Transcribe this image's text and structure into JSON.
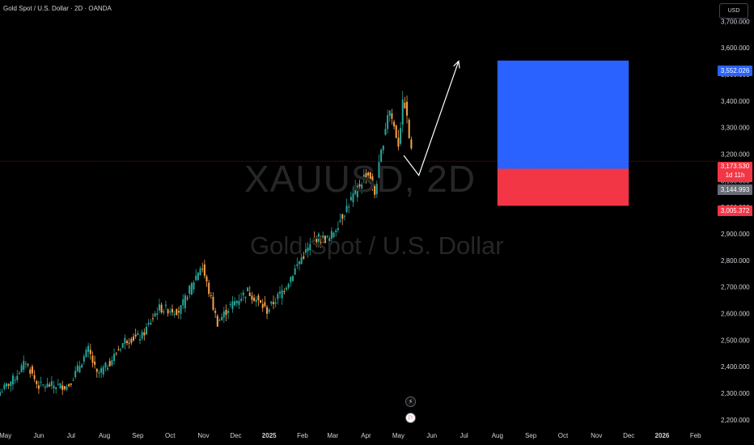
{
  "header": {
    "title": "Gold Spot / U.S. Dollar · 2D · OANDA",
    "currency": "USD"
  },
  "watermark": {
    "symbol": "XAUUSD, 2D",
    "name": "Gold Spot / U.S. Dollar"
  },
  "colors": {
    "up": "#26a69a",
    "down": "#f7a14a",
    "target_zone": "#2962ff",
    "stop_zone": "#f23645",
    "price_line": "#f23645"
  },
  "chart_data": {
    "type": "candlestick",
    "ylim": [
      2175,
      3780
    ],
    "y_ticks": [
      2200,
      2300,
      2400,
      2500,
      2600,
      2700,
      2800,
      2900,
      3000,
      3100,
      3200,
      3300,
      3400,
      3500,
      3600,
      3700
    ],
    "y_tick_labels": [
      "2,200.000",
      "2,300.000",
      "2,400.000",
      "2,500.000",
      "2,600.000",
      "2,700.000",
      "2,800.000",
      "2,900.000",
      "3,000.000",
      "3,100.000",
      "3,200.000",
      "3,300.000",
      "3,400.000",
      "3,500.000",
      "3,600.000",
      "3,700.000"
    ],
    "x_range": [
      "2024-04-26",
      "2026-02-20"
    ],
    "x_labels": [
      {
        "date": "2024-05-01",
        "label": "May"
      },
      {
        "date": "2024-06-01",
        "label": "Jun"
      },
      {
        "date": "2024-07-01",
        "label": "Jul"
      },
      {
        "date": "2024-08-01",
        "label": "Aug"
      },
      {
        "date": "2024-09-01",
        "label": "Sep"
      },
      {
        "date": "2024-10-01",
        "label": "Oct"
      },
      {
        "date": "2024-11-01",
        "label": "Nov"
      },
      {
        "date": "2024-12-01",
        "label": "Dec"
      },
      {
        "date": "2025-01-01",
        "label": "2025",
        "bold": true
      },
      {
        "date": "2025-02-01",
        "label": "Feb"
      },
      {
        "date": "2025-03-01",
        "label": "Mar"
      },
      {
        "date": "2025-04-01",
        "label": "Apr"
      },
      {
        "date": "2025-05-01",
        "label": "May"
      },
      {
        "date": "2025-06-01",
        "label": "Jun"
      },
      {
        "date": "2025-07-01",
        "label": "Jul"
      },
      {
        "date": "2025-08-01",
        "label": "Aug"
      },
      {
        "date": "2025-09-01",
        "label": "Sep"
      },
      {
        "date": "2025-10-01",
        "label": "Oct"
      },
      {
        "date": "2025-11-01",
        "label": "Nov"
      },
      {
        "date": "2025-12-01",
        "label": "Dec"
      },
      {
        "date": "2026-01-01",
        "label": "2026",
        "bold": true
      },
      {
        "date": "2026-02-01",
        "label": "Feb"
      }
    ],
    "series_close": [
      {
        "date": "2024-04-26",
        "value": 2305
      },
      {
        "date": "2024-05-10",
        "value": 2360
      },
      {
        "date": "2024-05-20",
        "value": 2420
      },
      {
        "date": "2024-05-31",
        "value": 2328
      },
      {
        "date": "2024-06-14",
        "value": 2330
      },
      {
        "date": "2024-06-28",
        "value": 2325
      },
      {
        "date": "2024-07-17",
        "value": 2465
      },
      {
        "date": "2024-07-25",
        "value": 2370
      },
      {
        "date": "2024-08-05",
        "value": 2410
      },
      {
        "date": "2024-08-20",
        "value": 2500
      },
      {
        "date": "2024-09-05",
        "value": 2515
      },
      {
        "date": "2024-09-20",
        "value": 2620
      },
      {
        "date": "2024-10-10",
        "value": 2610
      },
      {
        "date": "2024-10-30",
        "value": 2785
      },
      {
        "date": "2024-11-14",
        "value": 2565
      },
      {
        "date": "2024-11-25",
        "value": 2625
      },
      {
        "date": "2024-12-12",
        "value": 2685
      },
      {
        "date": "2024-12-30",
        "value": 2610
      },
      {
        "date": "2025-01-15",
        "value": 2695
      },
      {
        "date": "2025-01-31",
        "value": 2810
      },
      {
        "date": "2025-02-14",
        "value": 2885
      },
      {
        "date": "2025-02-26",
        "value": 2880
      },
      {
        "date": "2025-03-14",
        "value": 3000
      },
      {
        "date": "2025-04-02",
        "value": 3135
      },
      {
        "date": "2025-04-09",
        "value": 3050
      },
      {
        "date": "2025-04-22",
        "value": 3380
      },
      {
        "date": "2025-05-01",
        "value": 3240
      },
      {
        "date": "2025-05-06",
        "value": 3420
      },
      {
        "date": "2025-05-14",
        "value": 3175
      }
    ],
    "last_price": 3173.53,
    "last_price_label": "3,173.530",
    "countdown": "1d 11h",
    "position": {
      "start": "2025-08-01",
      "end": "2025-12-01",
      "entry": 3144.993,
      "target": 3552.026,
      "stop": 3005.372,
      "entry_label": "3,144.993",
      "target_label": "3,552.026",
      "stop_label": "3,005.372"
    },
    "projection_path": [
      {
        "date": "2025-05-06",
        "value": 3195
      },
      {
        "date": "2025-05-20",
        "value": 3120
      },
      {
        "date": "2025-06-26",
        "value": 3550
      }
    ]
  }
}
